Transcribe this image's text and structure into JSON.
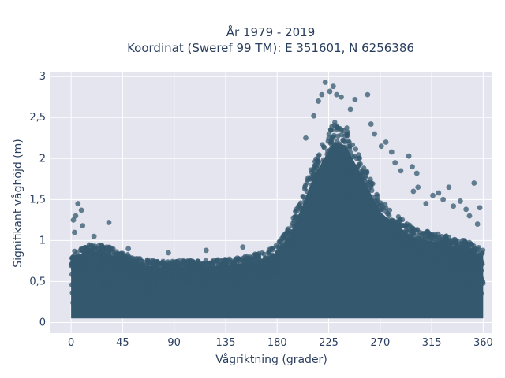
{
  "chart_data": {
    "type": "scatter",
    "title_line1": "År 1979 - 2019",
    "title_line2": "Koordinat (Sweref 99 TM): E 351601, N 6256386",
    "xlabel": "Vågriktning (grader)",
    "ylabel": "Signifikant våghöjd (m)",
    "xlim": [
      -18,
      368
    ],
    "ylim": [
      -0.13,
      3.05
    ],
    "x_ticks": [
      0,
      45,
      90,
      135,
      180,
      225,
      270,
      315,
      360
    ],
    "x_tick_labels": [
      "0",
      "45",
      "90",
      "135",
      "180",
      "225",
      "270",
      "315",
      "360"
    ],
    "y_ticks": [
      0,
      0.5,
      1,
      1.5,
      2,
      2.5,
      3
    ],
    "y_tick_labels": [
      "0",
      "0,5",
      "1",
      "1,5",
      "2",
      "2,5",
      "3"
    ],
    "grid": true,
    "marker_color": "#34586e",
    "plot_background": "#e5e5f0",
    "envelope": {
      "direction": [
        0,
        15,
        30,
        45,
        60,
        75,
        90,
        105,
        120,
        135,
        150,
        165,
        180,
        190,
        200,
        210,
        220,
        230,
        240,
        250,
        260,
        270,
        285,
        300,
        315,
        330,
        345,
        360
      ],
      "max_height": [
        0.9,
        0.95,
        0.95,
        0.85,
        0.78,
        0.75,
        0.75,
        0.76,
        0.76,
        0.78,
        0.8,
        0.85,
        0.95,
        1.15,
        1.5,
        1.9,
        2.2,
        2.45,
        2.4,
        2.1,
        1.8,
        1.5,
        1.3,
        1.15,
        1.1,
        1.05,
        1.0,
        0.9
      ]
    },
    "outliers": [
      {
        "x": 2,
        "y": 1.25
      },
      {
        "x": 4,
        "y": 1.3
      },
      {
        "x": 6,
        "y": 1.45
      },
      {
        "x": 9,
        "y": 1.37
      },
      {
        "x": 10,
        "y": 1.18
      },
      {
        "x": 3,
        "y": 1.1
      },
      {
        "x": 33,
        "y": 1.22
      },
      {
        "x": 20,
        "y": 1.05
      },
      {
        "x": 50,
        "y": 0.9
      },
      {
        "x": 85,
        "y": 0.85
      },
      {
        "x": 118,
        "y": 0.88
      },
      {
        "x": 150,
        "y": 0.92
      },
      {
        "x": 205,
        "y": 2.25
      },
      {
        "x": 212,
        "y": 2.52
      },
      {
        "x": 216,
        "y": 2.7
      },
      {
        "x": 219,
        "y": 2.78
      },
      {
        "x": 222,
        "y": 2.93
      },
      {
        "x": 226,
        "y": 2.82
      },
      {
        "x": 229,
        "y": 2.88
      },
      {
        "x": 232,
        "y": 2.78
      },
      {
        "x": 236,
        "y": 2.75
      },
      {
        "x": 244,
        "y": 2.6
      },
      {
        "x": 248,
        "y": 2.72
      },
      {
        "x": 259,
        "y": 2.78
      },
      {
        "x": 262,
        "y": 2.42
      },
      {
        "x": 265,
        "y": 2.3
      },
      {
        "x": 271,
        "y": 2.15
      },
      {
        "x": 275,
        "y": 2.2
      },
      {
        "x": 280,
        "y": 2.08
      },
      {
        "x": 283,
        "y": 1.95
      },
      {
        "x": 288,
        "y": 1.85
      },
      {
        "x": 295,
        "y": 2.03
      },
      {
        "x": 298,
        "y": 1.9
      },
      {
        "x": 302,
        "y": 1.82
      },
      {
        "x": 299,
        "y": 1.6
      },
      {
        "x": 303,
        "y": 1.65
      },
      {
        "x": 310,
        "y": 1.45
      },
      {
        "x": 316,
        "y": 1.55
      },
      {
        "x": 321,
        "y": 1.58
      },
      {
        "x": 325,
        "y": 1.5
      },
      {
        "x": 330,
        "y": 1.65
      },
      {
        "x": 334,
        "y": 1.42
      },
      {
        "x": 340,
        "y": 1.48
      },
      {
        "x": 345,
        "y": 1.38
      },
      {
        "x": 352,
        "y": 1.7
      },
      {
        "x": 357,
        "y": 1.4
      },
      {
        "x": 348,
        "y": 1.3
      },
      {
        "x": 355,
        "y": 1.2
      }
    ]
  }
}
